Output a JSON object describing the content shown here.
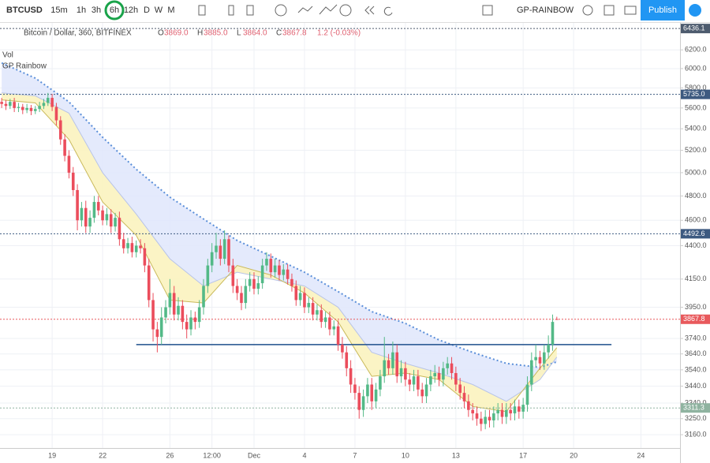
{
  "toolbar": {
    "symbol": "BTCUSD",
    "intervals": [
      "15m",
      "1h",
      "3h",
      "6h",
      "12h",
      "D",
      "W",
      "M"
    ],
    "indicator_template": "GP-RAINBOW",
    "publish": "Publish"
  },
  "legend": {
    "title": "Bitcoin / Dollar, 360, BITFINEX",
    "ohlc": [
      {
        "key": "O",
        "value": "3869.0"
      },
      {
        "key": "H",
        "value": "3885.0"
      },
      {
        "key": "L",
        "value": "3864.0"
      },
      {
        "key": "C",
        "value": "3867.8"
      }
    ],
    "change": "1.2 (-0.03%)",
    "studies": [
      "Vol",
      "GP Rainbow"
    ]
  },
  "chart_data": {
    "type": "candlestick",
    "log_scale": true,
    "grid": true,
    "up_color": "#53b987",
    "down_color": "#eb4d5c",
    "xlim": [
      -0.4,
      161.3
    ],
    "ylim": [
      3087,
      6500
    ],
    "xticks": [
      {
        "value": 12,
        "label": "19"
      },
      {
        "value": 24,
        "label": "22"
      },
      {
        "value": 40,
        "label": "26"
      },
      {
        "value": 50,
        "label": "12:00"
      },
      {
        "value": 60,
        "label": "Dec"
      },
      {
        "value": 72,
        "label": "4"
      },
      {
        "value": 84,
        "label": "7"
      },
      {
        "value": 96,
        "label": "10"
      },
      {
        "value": 108,
        "label": "13"
      },
      {
        "value": 124,
        "label": "17"
      },
      {
        "value": 136,
        "label": "20"
      },
      {
        "value": 152,
        "label": "24"
      }
    ],
    "yticks": [
      {
        "value": 6200,
        "label": "6200.0"
      },
      {
        "value": 6000,
        "label": "6000.0"
      },
      {
        "value": 5800,
        "label": "5800.0"
      },
      {
        "value": 5600,
        "label": "5600.0"
      },
      {
        "value": 5400,
        "label": "5400.0"
      },
      {
        "value": 5200,
        "label": "5200.0"
      },
      {
        "value": 5000,
        "label": "5000.0"
      },
      {
        "value": 4800,
        "label": "4800.0"
      },
      {
        "value": 4600,
        "label": "4600.0"
      },
      {
        "value": 4400,
        "label": "4400.0"
      },
      {
        "value": 4150,
        "label": "4150.0"
      },
      {
        "value": 3950,
        "label": "3950.0"
      },
      {
        "value": 3740,
        "label": "3740.0"
      },
      {
        "value": 3640,
        "label": "3640.0"
      },
      {
        "value": 3540,
        "label": "3540.0"
      },
      {
        "value": 3440,
        "label": "3440.0"
      },
      {
        "value": 3340,
        "label": "3340.0"
      },
      {
        "value": 3250,
        "label": "3250.0"
      },
      {
        "value": 3160,
        "label": "3160.0"
      }
    ],
    "open": [
      5660,
      5640,
      5620,
      5660,
      5600,
      5610,
      5580,
      5600,
      5570,
      5590,
      5620,
      5650,
      5700,
      5610,
      5480,
      5300,
      5150,
      5000,
      4850,
      4600,
      4700,
      4550,
      4620,
      4750,
      4680,
      4600,
      4650,
      4550,
      4620,
      4450,
      4380,
      4420,
      4350,
      4400,
      4380,
      4250,
      4000,
      3800,
      3750,
      3880,
      3950,
      4050,
      3900,
      3960,
      3850,
      3800,
      3880,
      3850,
      3950,
      4100,
      4250,
      4350,
      4400,
      4300,
      4450,
      4250,
      4100,
      4050,
      3980,
      4100,
      4150,
      4080,
      4120,
      4250,
      4300,
      4200,
      4250,
      4180,
      4220,
      4150,
      4100,
      4000,
      4050,
      3950,
      3980,
      3900,
      3930,
      3850,
      3880,
      3800,
      3820,
      3700,
      3650,
      3550,
      3450,
      3400,
      3300,
      3380,
      3450,
      3350,
      3420,
      3500,
      3600,
      3550,
      3650,
      3500,
      3550,
      3480,
      3450,
      3500,
      3420,
      3380,
      3450,
      3500,
      3520,
      3480,
      3550,
      3580,
      3520,
      3450,
      3400,
      3350,
      3300,
      3280,
      3250,
      3220,
      3260,
      3240,
      3280,
      3300,
      3260,
      3300,
      3280,
      3320,
      3290,
      3330,
      3450,
      3600,
      3620,
      3580,
      3650,
      3700,
      3869
    ],
    "high": [
      5700,
      5680,
      5690,
      5700,
      5650,
      5640,
      5640,
      5630,
      5620,
      5660,
      5690,
      5750,
      5740,
      5650,
      5520,
      5350,
      5200,
      5050,
      4900,
      4750,
      4760,
      4680,
      4800,
      4800,
      4720,
      4700,
      4690,
      4660,
      4670,
      4500,
      4460,
      4470,
      4440,
      4450,
      4420,
      4300,
      4050,
      3850,
      3950,
      4000,
      4150,
      4100,
      4020,
      4000,
      3900,
      3930,
      3920,
      4000,
      4150,
      4300,
      4420,
      4500,
      4450,
      4520,
      4480,
      4300,
      4150,
      4100,
      4150,
      4200,
      4200,
      4170,
      4300,
      4350,
      4340,
      4300,
      4290,
      4260,
      4260,
      4190,
      4140,
      4100,
      4090,
      4020,
      4020,
      3970,
      3970,
      3920,
      3920,
      3860,
      3860,
      3750,
      3690,
      3600,
      3490,
      3440,
      3420,
      3490,
      3490,
      3460,
      3540,
      3750,
      3640,
      3720,
      3700,
      3600,
      3590,
      3520,
      3540,
      3540,
      3460,
      3490,
      3540,
      3570,
      3560,
      3590,
      3620,
      3620,
      3560,
      3490,
      3440,
      3390,
      3340,
      3320,
      3290,
      3300,
      3300,
      3320,
      3340,
      3340,
      3340,
      3340,
      3360,
      3360,
      3370,
      3500,
      3650,
      3700,
      3660,
      3700,
      3760,
      3900,
      3885
    ],
    "low": [
      5600,
      5580,
      5590,
      5560,
      5560,
      5540,
      5550,
      5530,
      5540,
      5560,
      5590,
      5620,
      5570,
      5430,
      5250,
      5100,
      4950,
      4800,
      4520,
      4550,
      4500,
      4500,
      4580,
      4640,
      4560,
      4560,
      4500,
      4510,
      4400,
      4340,
      4340,
      4310,
      4310,
      4340,
      4200,
      3950,
      3720,
      3650,
      3700,
      3840,
      3900,
      3860,
      3860,
      3800,
      3740,
      3760,
      3800,
      3810,
      3900,
      4050,
      4200,
      4300,
      4250,
      4260,
      4200,
      4050,
      4000,
      3930,
      3940,
      4060,
      4040,
      4040,
      4080,
      4210,
      4160,
      4160,
      4140,
      4140,
      4110,
      4060,
      3960,
      3960,
      3910,
      3910,
      3860,
      3860,
      3810,
      3810,
      3760,
      3760,
      3660,
      3610,
      3500,
      3400,
      3360,
      3250,
      3260,
      3340,
      3300,
      3310,
      3380,
      3460,
      3510,
      3510,
      3460,
      3460,
      3440,
      3410,
      3410,
      3380,
      3340,
      3340,
      3410,
      3460,
      3440,
      3440,
      3510,
      3480,
      3410,
      3360,
      3310,
      3260,
      3240,
      3210,
      3180,
      3190,
      3200,
      3200,
      3240,
      3220,
      3220,
      3240,
      3240,
      3250,
      3250,
      3290,
      3410,
      3560,
      3540,
      3540,
      3610,
      3660,
      3864
    ],
    "close": [
      5640,
      5620,
      5660,
      5600,
      5610,
      5580,
      5600,
      5570,
      5590,
      5620,
      5650,
      5700,
      5610,
      5480,
      5300,
      5150,
      5000,
      4850,
      4600,
      4700,
      4550,
      4620,
      4750,
      4680,
      4600,
      4650,
      4550,
      4620,
      4450,
      4380,
      4420,
      4350,
      4400,
      4380,
      4250,
      4000,
      3800,
      3750,
      3880,
      3950,
      4050,
      3900,
      3960,
      3850,
      3800,
      3880,
      3850,
      3950,
      4100,
      4250,
      4350,
      4400,
      4300,
      4450,
      4250,
      4100,
      4050,
      3980,
      4100,
      4150,
      4080,
      4120,
      4250,
      4300,
      4200,
      4250,
      4180,
      4220,
      4150,
      4100,
      4000,
      4050,
      3950,
      3980,
      3900,
      3930,
      3850,
      3880,
      3800,
      3820,
      3700,
      3650,
      3550,
      3450,
      3400,
      3300,
      3380,
      3450,
      3350,
      3420,
      3500,
      3600,
      3550,
      3650,
      3500,
      3550,
      3480,
      3450,
      3500,
      3420,
      3380,
      3450,
      3500,
      3520,
      3480,
      3550,
      3580,
      3520,
      3450,
      3400,
      3350,
      3300,
      3280,
      3250,
      3220,
      3260,
      3240,
      3280,
      3300,
      3260,
      3300,
      3280,
      3320,
      3290,
      3330,
      3450,
      3600,
      3620,
      3580,
      3650,
      3700,
      3850,
      3867.8
    ],
    "bands": {
      "x": [
        0,
        8,
        16,
        24,
        32,
        40,
        48,
        56,
        64,
        72,
        80,
        88,
        96,
        104,
        112,
        120,
        128,
        132
      ],
      "top": [
        6060,
        5900,
        5660,
        5320,
        5030,
        4790,
        4610,
        4440,
        4320,
        4200,
        4060,
        3920,
        3840,
        3730,
        3650,
        3580,
        3555,
        3590
      ],
      "mid": [
        5750,
        5720,
        5550,
        5000,
        4650,
        4300,
        4100,
        4200,
        4150,
        4100,
        3950,
        3650,
        3580,
        3520,
        3450,
        3350,
        3480,
        3620
      ],
      "fast": [
        5680,
        5650,
        5300,
        4750,
        4480,
        4000,
        3980,
        4250,
        4180,
        4050,
        3850,
        3500,
        3520,
        3480,
        3320,
        3290,
        3550,
        3680
      ],
      "top_color": "#5b8fd9",
      "upper_fill": "#dfe6fb",
      "lower_fill": "#fbf3bf",
      "fast_color": "#c9b95a"
    },
    "price_lines": [
      {
        "value": 6436.1,
        "label": "6436.1",
        "color": "#4d5b6e"
      },
      {
        "value": 5735.0,
        "label": "5735.0",
        "color": "#3d5a80"
      },
      {
        "value": 4492.6,
        "label": "4492.6",
        "color": "#3d5a80"
      },
      {
        "value": 3867.8,
        "label": "3867.8",
        "color": "#e8595c"
      },
      {
        "value": 3311.3,
        "label": "3311.3",
        "color": "#8fb3a0"
      }
    ],
    "trendline": {
      "x": [
        32,
        145
      ],
      "values": [
        3700,
        3700
      ],
      "color": "#1e4f8c"
    }
  }
}
